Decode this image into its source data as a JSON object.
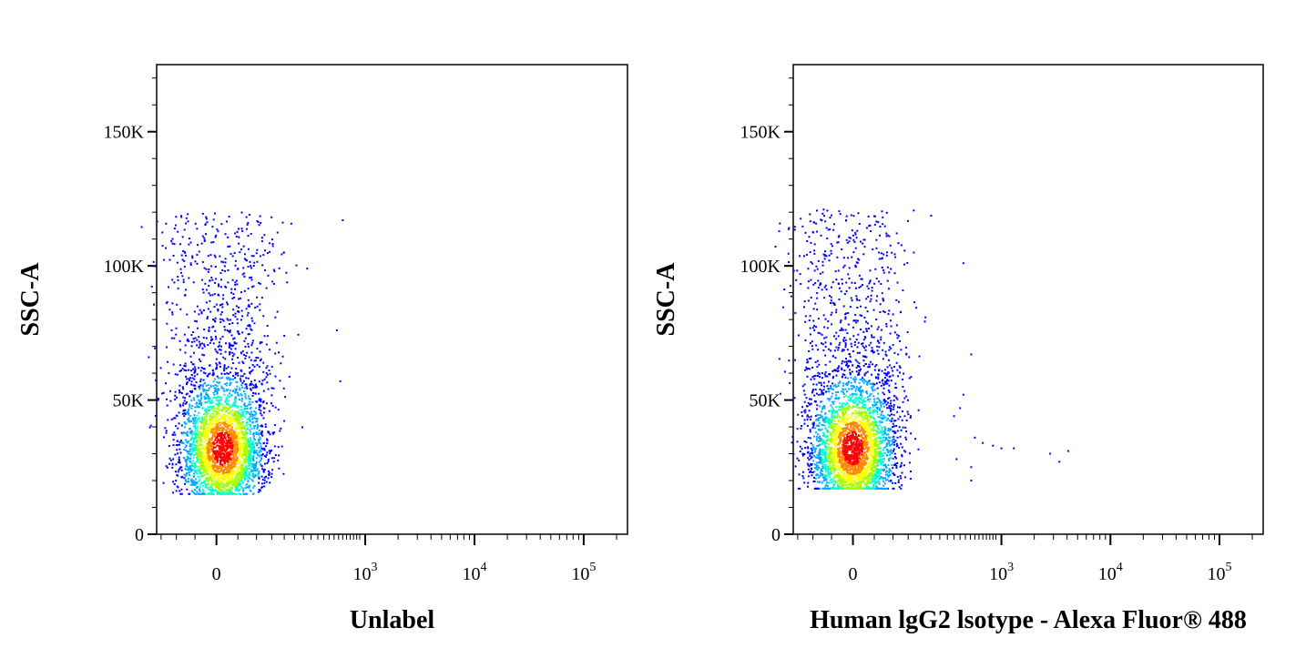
{
  "chart_data": [
    {
      "type": "scatter",
      "ylabel": "SSC-A",
      "xlabel": "Unlabel",
      "x_scale": "biexponential",
      "y_ticks": [
        {
          "value": 0,
          "label": "0"
        },
        {
          "value": 50000,
          "label": "50K"
        },
        {
          "value": 100000,
          "label": "100K"
        },
        {
          "value": 150000,
          "label": "150K"
        }
      ],
      "x_ticks": [
        {
          "value": 0,
          "label": "0",
          "sup": ""
        },
        {
          "value": 1000,
          "label": "10",
          "sup": "3"
        },
        {
          "value": 10000,
          "label": "10",
          "sup": "4"
        },
        {
          "value": 100000,
          "label": "10",
          "sup": "5"
        }
      ],
      "ylim": [
        0,
        175000
      ],
      "colormap": [
        "#0000ff",
        "#00aaff",
        "#00ffcc",
        "#a0ff00",
        "#ffff00",
        "#ff8800",
        "#ff0000"
      ],
      "population": {
        "main_x_center": 15,
        "main_x_spread": 55,
        "ssc_mode": 32000,
        "ssc_min": 15000,
        "ssc_max": 121000,
        "event_count": 3500
      },
      "outliers": [
        {
          "x": 650,
          "y": 117000
        },
        {
          "x": 620,
          "y": 57000
        },
        {
          "x": 580,
          "y": 76000
        }
      ]
    },
    {
      "type": "scatter",
      "ylabel": "SSC-A",
      "xlabel": "Human lgG2 lsotype - Alexa Fluor® 488",
      "x_scale": "biexponential",
      "y_ticks": [
        {
          "value": 0,
          "label": "0"
        },
        {
          "value": 50000,
          "label": "50K"
        },
        {
          "value": 100000,
          "label": "100K"
        },
        {
          "value": 150000,
          "label": "150K"
        }
      ],
      "x_ticks": [
        {
          "value": 0,
          "label": "0",
          "sup": ""
        },
        {
          "value": 1000,
          "label": "10",
          "sup": "3"
        },
        {
          "value": 10000,
          "label": "10",
          "sup": "4"
        },
        {
          "value": 100000,
          "label": "10",
          "sup": "5"
        }
      ],
      "ylim": [
        0,
        175000
      ],
      "colormap": [
        "#0000ff",
        "#00aaff",
        "#00ffcc",
        "#a0ff00",
        "#ffff00",
        "#ff8800",
        "#ff0000"
      ],
      "population": {
        "main_x_center": 0,
        "main_x_spread": 55,
        "ssc_mode": 32000,
        "ssc_min": 17000,
        "ssc_max": 121000,
        "event_count": 3500
      },
      "outliers": [
        {
          "x": 480,
          "y": 101000
        },
        {
          "x": 560,
          "y": 67000
        },
        {
          "x": 560,
          "y": 25000
        },
        {
          "x": 560,
          "y": 20000
        },
        {
          "x": 600,
          "y": 36000
        },
        {
          "x": 700,
          "y": 34000
        },
        {
          "x": 850,
          "y": 33000
        },
        {
          "x": 1000,
          "y": 32000
        },
        {
          "x": 1300,
          "y": 32000
        },
        {
          "x": 2800,
          "y": 30000
        },
        {
          "x": 3400,
          "y": 27000
        },
        {
          "x": 4100,
          "y": 31000
        },
        {
          "x": 480,
          "y": 52000
        },
        {
          "x": 450,
          "y": 47000
        },
        {
          "x": 400,
          "y": 44000
        },
        {
          "x": 420,
          "y": 28000
        }
      ]
    }
  ]
}
